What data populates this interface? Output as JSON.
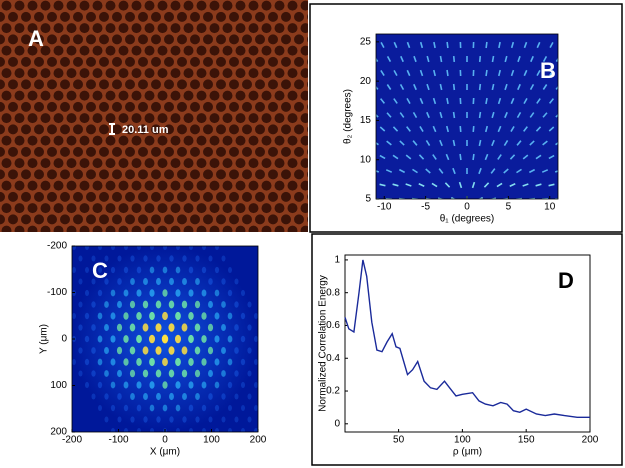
{
  "chart_data": [
    {
      "type": "image",
      "label": "A",
      "annotation": "20.11 um"
    },
    {
      "type": "image",
      "label": "B",
      "xlabel": "θ₁ (degrees)",
      "ylabel": "θ₂ (degrees)",
      "xlim": [
        -11,
        11
      ],
      "ylim": [
        5,
        26
      ],
      "xticks": [
        -10,
        -5,
        0,
        5,
        10
      ],
      "yticks": [
        5,
        10,
        15,
        20,
        25
      ]
    },
    {
      "type": "image",
      "label": "C",
      "xlabel": "X (μm)",
      "ylabel": "Y (μm)",
      "xlim": [
        -200,
        200
      ],
      "ylim": [
        -200,
        200
      ],
      "y_reversed": true,
      "xticks": [
        -200,
        -100,
        0,
        100,
        200
      ],
      "yticks": [
        -200,
        -100,
        0,
        100,
        200
      ]
    },
    {
      "type": "line",
      "label": "D",
      "xlabel": "ρ (μm)",
      "ylabel": "Normalized Correlation Energy",
      "color": "#1a2a9a",
      "x": [
        8,
        11,
        15,
        19,
        22,
        25,
        29,
        33,
        37,
        41,
        45,
        48,
        51,
        57,
        61,
        65,
        70,
        75,
        80,
        86,
        90,
        95,
        100,
        108,
        113,
        118,
        124,
        130,
        135,
        140,
        145,
        150,
        158,
        165,
        172,
        180,
        190,
        200
      ],
      "values": [
        0.65,
        0.58,
        0.56,
        0.8,
        1.0,
        0.9,
        0.62,
        0.45,
        0.44,
        0.5,
        0.55,
        0.47,
        0.46,
        0.3,
        0.33,
        0.38,
        0.26,
        0.22,
        0.21,
        0.26,
        0.22,
        0.17,
        0.18,
        0.19,
        0.14,
        0.12,
        0.11,
        0.13,
        0.12,
        0.08,
        0.07,
        0.09,
        0.06,
        0.05,
        0.06,
        0.05,
        0.04,
        0.04
      ],
      "xlim": [
        8,
        200
      ],
      "ylim": [
        -0.05,
        1.03
      ],
      "xticks": [
        50,
        100,
        150,
        200
      ],
      "yticks": [
        0,
        0.2,
        0.4,
        0.6,
        0.8,
        1
      ]
    }
  ]
}
